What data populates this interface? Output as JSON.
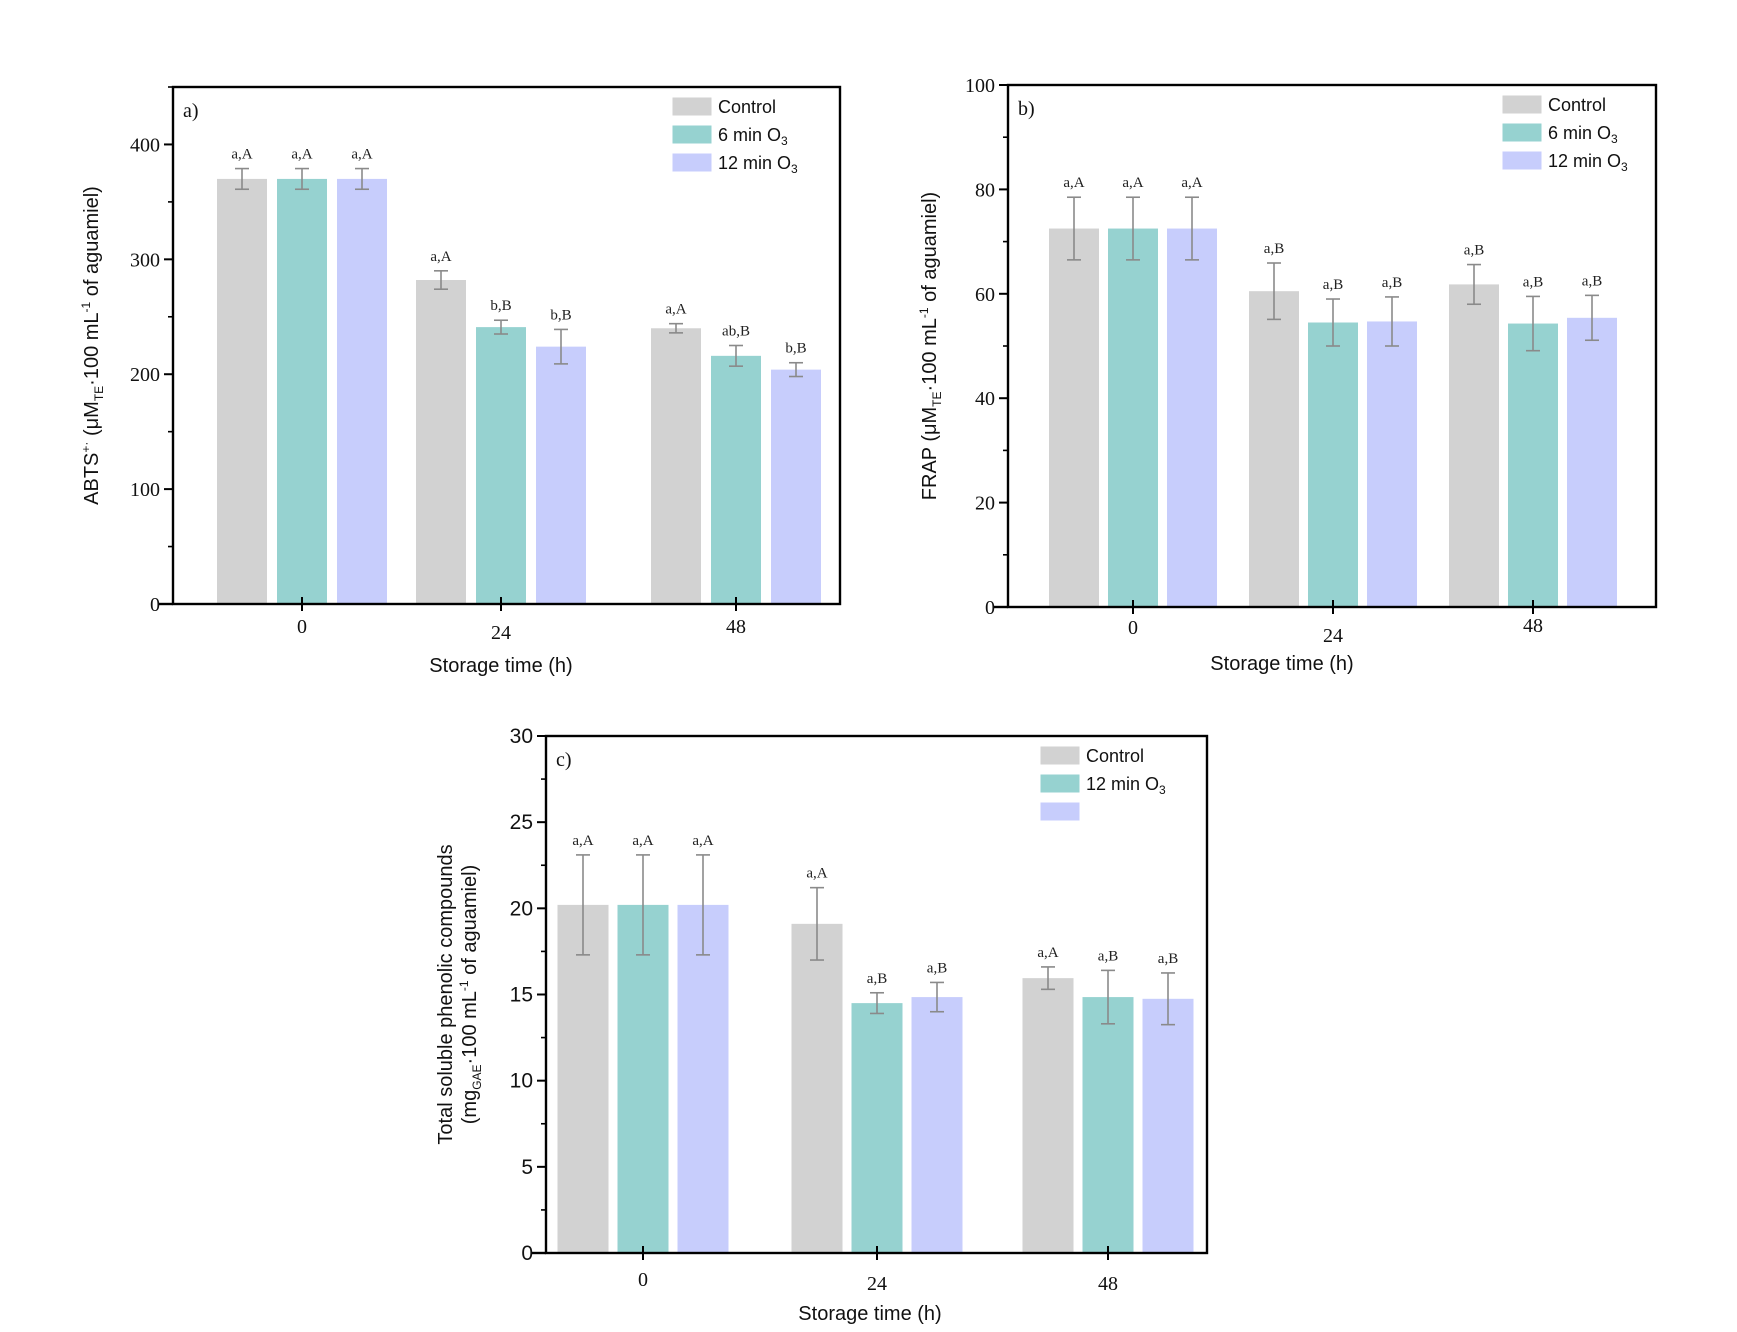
{
  "chart_data": [
    {
      "type": "bar",
      "panel_label": "a)",
      "title": "",
      "xlabel": "Storage time (h)",
      "ylabel": "ABTS⁺· (μM_TE·100 mL⁻¹ of aguamiel)",
      "ylabel_parts": {
        "pre": "ABTS",
        "sup1": "+·",
        "mid": " (μM",
        "sub": "TE",
        "post": "·100 mL",
        "sup2": "-1",
        "end": " of aguamiel)"
      },
      "categories": [
        "0",
        "24",
        "48"
      ],
      "ylim": [
        0,
        450
      ],
      "yticks": [
        0,
        100,
        200,
        300,
        400
      ],
      "yticks_labels": [
        "0",
        "100",
        "200",
        "300",
        "400"
      ],
      "legend_position": "top-right",
      "legend": [
        "Control",
        "6 min O3",
        "12 min O3"
      ],
      "series": [
        {
          "name": "Control",
          "values": [
            370,
            282,
            240
          ],
          "errors": [
            9,
            8,
            4
          ],
          "labels": [
            "a,A",
            "a,A",
            "a,A"
          ]
        },
        {
          "name": "6 min O3",
          "values": [
            370,
            241,
            216
          ],
          "errors": [
            9,
            6,
            9
          ],
          "labels": [
            "a,A",
            "b,B",
            "ab,B"
          ]
        },
        {
          "name": "12 min O3",
          "values": [
            370,
            224,
            204
          ],
          "errors": [
            9,
            15,
            6
          ],
          "labels": [
            "a,A",
            "b,B",
            "b,B"
          ]
        }
      ]
    },
    {
      "type": "bar",
      "panel_label": "b)",
      "title": "",
      "xlabel": "Storage time (h)",
      "ylabel": "FRAP (μM_TE·100 mL⁻¹ of aguamiel)",
      "ylabel_parts": {
        "pre": "FRAP",
        "sup1": "",
        "mid": " (μM",
        "sub": "TE",
        "post": "·100 mL",
        "sup2": "-1",
        "end": " of aguamiel)"
      },
      "categories": [
        "0",
        "24",
        "48"
      ],
      "ylim": [
        0,
        100
      ],
      "yticks": [
        0,
        20,
        40,
        60,
        80,
        100
      ],
      "yticks_labels": [
        "0",
        "20",
        "40",
        "60",
        "80",
        "100"
      ],
      "legend_position": "top-right",
      "legend": [
        "Control",
        "6 min O3",
        "12 min O3"
      ],
      "series": [
        {
          "name": "Control",
          "values": [
            72.5,
            60.5,
            61.8
          ],
          "errors": [
            6,
            5.4,
            3.8
          ],
          "labels": [
            "a,A",
            "a,B",
            "a,B"
          ]
        },
        {
          "name": "6 min O3",
          "values": [
            72.5,
            54.5,
            54.3
          ],
          "errors": [
            6,
            4.5,
            5.2
          ],
          "labels": [
            "a,A",
            "a,B",
            "a,B"
          ]
        },
        {
          "name": "12 min O3",
          "values": [
            72.5,
            54.7,
            55.4
          ],
          "errors": [
            6,
            4.7,
            4.3
          ],
          "labels": [
            "a,A",
            "a,B",
            "a,B"
          ]
        }
      ]
    },
    {
      "type": "bar",
      "panel_label": "c)",
      "title": "",
      "xlabel": "Storage time (h)",
      "ylabel": "Total soluble phenolic compounds (mg_GAE·100 mL⁻¹ of aguamiel)",
      "ylabel_line1": "Total soluble phenolic compounds",
      "ylabel_parts": {
        "pre": "",
        "sup1": "",
        "mid": "(mg",
        "sub": "GAE",
        "post": "·100 mL",
        "sup2": "-1",
        "end": " of aguamiel)"
      },
      "categories": [
        "0",
        "24",
        "48"
      ],
      "ylim": [
        0,
        30
      ],
      "yticks": [
        0,
        5,
        10,
        15,
        20,
        25,
        30
      ],
      "yticks_labels": [
        "0",
        "5",
        "10",
        "15",
        "20",
        "25",
        "30"
      ],
      "legend_position": "top-right",
      "legend": [
        "Control",
        "12 min O3",
        ""
      ],
      "series": [
        {
          "name": "Control",
          "values": [
            20.2,
            19.1,
            15.95
          ],
          "errors": [
            2.9,
            2.1,
            0.65
          ],
          "labels": [
            "a,A",
            "a,A",
            "a,A"
          ]
        },
        {
          "name": "12 min O3",
          "values": [
            20.2,
            14.5,
            14.85
          ],
          "errors": [
            2.9,
            0.6,
            1.55
          ],
          "labels": [
            "a,A",
            "a,B",
            "a,B"
          ]
        },
        {
          "name": "",
          "values": [
            20.2,
            14.85,
            14.75
          ],
          "errors": [
            2.9,
            0.85,
            1.5
          ],
          "labels": [
            "a,A",
            "a,B",
            "a,B"
          ]
        }
      ]
    }
  ],
  "colors": {
    "control": "#d2d2d2",
    "six_min": "#96d2d0",
    "twelve_min": "#c7cdfc",
    "error_bar": "#8a8a8a",
    "axis": "#000000"
  }
}
